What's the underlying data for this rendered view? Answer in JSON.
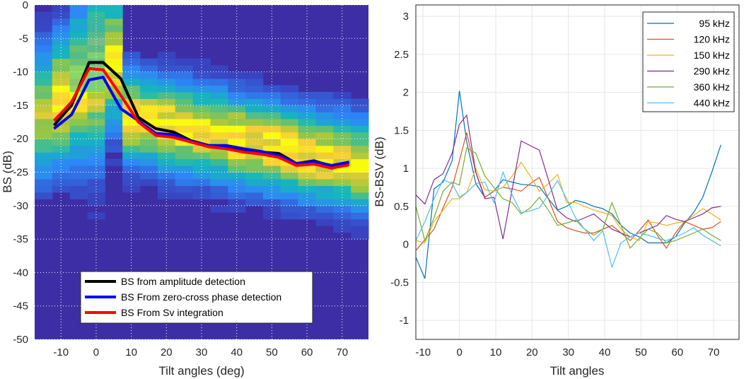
{
  "chart_data": [
    {
      "type": "heatmap",
      "title": "",
      "xlabel": "Tilt angles (deg)",
      "ylabel": "BS (dB)",
      "xlim": [
        -17.5,
        77.5
      ],
      "ylim": [
        -50,
        0
      ],
      "xticks": [
        "-10",
        "0",
        "10",
        "20",
        "30",
        "40",
        "50",
        "60",
        "70"
      ],
      "yticks": [
        "0",
        "-5",
        "-10",
        "-15",
        "-20",
        "-25",
        "-30",
        "-35",
        "-40",
        "-45",
        "-50"
      ],
      "grid": "dotted",
      "colors": {
        "low": "#3d2ea6",
        "high": "#f9fb0e"
      },
      "legend_position": "bottom-center",
      "legend": [
        "BS from amplitude detection",
        "BS From zero-cross phase detection",
        "BS From Sv integration"
      ],
      "series": [
        {
          "name": "BS from amplitude detection",
          "color": "#000000",
          "x": [
            -12,
            -7,
            -2,
            2,
            7,
            12,
            17,
            22,
            27,
            32,
            37,
            42,
            47,
            52,
            57,
            62,
            67,
            72
          ],
          "y": [
            -18,
            -15,
            -8.6,
            -8.6,
            -11,
            -16.8,
            -18.5,
            -19,
            -20.3,
            -21,
            -21.1,
            -21.6,
            -22,
            -22.2,
            -23.7,
            -23.3,
            -24.1,
            -23.5
          ]
        },
        {
          "name": "BS From zero-cross phase detection",
          "color": "#0000ff",
          "x": [
            -12,
            -7,
            -2,
            2,
            7,
            12,
            17,
            22,
            27,
            32,
            37,
            42,
            47,
            52,
            57,
            62,
            67,
            72
          ],
          "y": [
            -18.5,
            -16.4,
            -11.2,
            -10.8,
            -15.5,
            -17.3,
            -19.2,
            -19.4,
            -20.4,
            -21,
            -21,
            -21.5,
            -21.9,
            -22.5,
            -23.7,
            -23.4,
            -24,
            -23.5
          ]
        },
        {
          "name": "BS From Sv integration",
          "color": "#ff0000",
          "x": [
            -12,
            -7,
            -2,
            2,
            7,
            12,
            17,
            22,
            27,
            32,
            37,
            42,
            47,
            52,
            57,
            62,
            67,
            72
          ],
          "y": [
            -17.3,
            -14.5,
            -9.5,
            -9.7,
            -13.5,
            -17.5,
            -19.5,
            -19.8,
            -20.5,
            -21.2,
            -21.5,
            -22,
            -22.3,
            -22.8,
            -24,
            -23.8,
            -24.4,
            -23.9
          ]
        }
      ]
    },
    {
      "type": "line",
      "title": "",
      "xlabel": "Tilt angles",
      "ylabel": "BS-BSV (dB)",
      "xlim": [
        -12,
        77
      ],
      "ylim": [
        -1.25,
        3.15
      ],
      "xticks": [
        "-10",
        "0",
        "10",
        "20",
        "30",
        "40",
        "50",
        "60",
        "70"
      ],
      "yticks": [
        "3",
        "2.5",
        "2",
        "1.5",
        "1",
        "0.5",
        "0",
        "-0.5",
        "-1"
      ],
      "grid": "on",
      "legend_position": "top-right",
      "series": [
        {
          "name": "95 kHz",
          "color": "#0072bd",
          "x": [
            -12,
            -9.5,
            -7,
            -4.5,
            -2,
            0,
            2,
            4.5,
            7,
            9.5,
            12,
            14.5,
            17,
            19.5,
            22,
            24.5,
            27,
            29.5,
            32,
            34.5,
            37,
            39.5,
            42,
            44.5,
            47,
            49.5,
            52,
            54.5,
            57,
            59.5,
            62,
            64.5,
            67,
            69.5,
            72
          ],
          "y": [
            -0.17,
            -0.45,
            0.73,
            0.82,
            1.1,
            2.02,
            1.35,
            0.8,
            0.62,
            0.7,
            0.85,
            0.82,
            0.79,
            0.78,
            0.76,
            0.6,
            0.45,
            0.5,
            0.58,
            0.55,
            0.5,
            0.47,
            0.4,
            0.25,
            0.15,
            0.1,
            0.02,
            0.02,
            0.02,
            0.1,
            0.28,
            0.42,
            0.62,
            0.95,
            1.31
          ]
        },
        {
          "name": "120 kHz",
          "color": "#d95319",
          "x": [
            -12,
            -9.5,
            -7,
            -4.5,
            -2,
            0,
            2,
            4.5,
            7,
            9.5,
            12,
            14.5,
            17,
            19.5,
            22,
            24.5,
            27,
            29.5,
            32,
            34.5,
            37,
            39.5,
            42,
            44.5,
            47,
            49.5,
            52,
            54.5,
            57,
            59.5,
            62,
            64.5,
            67,
            69.5,
            72
          ],
          "y": [
            -0.08,
            0.06,
            0.2,
            0.48,
            0.75,
            1.1,
            1.47,
            0.95,
            0.62,
            0.7,
            0.75,
            0.73,
            0.7,
            0.8,
            0.88,
            0.6,
            0.3,
            0.22,
            0.18,
            0.15,
            0.15,
            0.2,
            0.25,
            0.15,
            0.05,
            0.18,
            0.32,
            0.12,
            -0.05,
            0.15,
            0.3,
            0.25,
            0.2,
            0.22,
            0.3
          ]
        },
        {
          "name": "150 kHz",
          "color": "#edb120",
          "x": [
            -12,
            -9.5,
            -7,
            -4.5,
            -2,
            0,
            2,
            4.5,
            7,
            9.5,
            12,
            14.5,
            17,
            19.5,
            22,
            24.5,
            27,
            29.5,
            32,
            34.5,
            37,
            39.5,
            42,
            44.5,
            47,
            49.5,
            52,
            54.5,
            57,
            59.5,
            62,
            64.5,
            67,
            69.5,
            72
          ],
          "y": [
            0.05,
            0.02,
            0.3,
            0.45,
            0.6,
            0.6,
            0.68,
            1.0,
            0.72,
            0.7,
            0.75,
            0.9,
            1.08,
            0.9,
            0.7,
            0.8,
            0.92,
            0.55,
            0.55,
            0.5,
            0.45,
            0.42,
            0.38,
            0.2,
            0.1,
            0.05,
            0.3,
            0.28,
            0.25,
            0.28,
            0.3,
            0.38,
            0.47,
            0.4,
            0.32
          ]
        },
        {
          "name": "290 kHz",
          "color": "#7e2f8e",
          "x": [
            -12,
            -9.5,
            -7,
            -4.5,
            -2,
            0,
            2,
            4.5,
            7,
            9.5,
            12,
            14.5,
            17,
            19.5,
            22,
            24.5,
            27,
            29.5,
            32,
            34.5,
            37,
            39.5,
            42,
            44.5,
            47,
            49.5,
            52,
            54.5,
            57,
            59.5,
            62,
            64.5,
            67,
            69.5,
            72
          ],
          "y": [
            0.65,
            0.53,
            0.85,
            0.93,
            1.2,
            1.58,
            1.7,
            0.95,
            0.6,
            0.62,
            0.07,
            0.72,
            1.36,
            1.3,
            1.24,
            0.85,
            0.45,
            0.35,
            0.3,
            0.35,
            0.4,
            0.3,
            0.2,
            0.15,
            0.1,
            0.15,
            0.2,
            0.25,
            0.38,
            0.33,
            0.3,
            0.35,
            0.4,
            0.48,
            0.5
          ]
        },
        {
          "name": "360 kHz",
          "color": "#77ac30",
          "x": [
            -12,
            -9.5,
            -7,
            -4.5,
            -2,
            0,
            2,
            4.5,
            7,
            9.5,
            12,
            14.5,
            17,
            19.5,
            22,
            24.5,
            27,
            29.5,
            32,
            34.5,
            37,
            39.5,
            42,
            44.5,
            47,
            49.5,
            52,
            54.5,
            57,
            59.5,
            62,
            64.5,
            67,
            69.5,
            72
          ],
          "y": [
            0.5,
            0.05,
            0.35,
            0.7,
            0.82,
            0.78,
            1.27,
            1.2,
            0.9,
            0.75,
            0.6,
            0.55,
            0.4,
            0.48,
            0.62,
            0.45,
            0.25,
            0.28,
            0.32,
            0.2,
            0.12,
            0.2,
            0.55,
            0.25,
            -0.05,
            0.08,
            0.2,
            0.15,
            0.02,
            0.05,
            0.1,
            0.15,
            0.2,
            0.12,
            0.05
          ]
        },
        {
          "name": "440 kHz",
          "color": "#4dbeee",
          "x": [
            -12,
            -9.5,
            -7,
            -4.5,
            -2,
            0,
            2,
            4.5,
            7,
            9.5,
            12,
            14.5,
            17,
            19.5,
            22,
            24.5,
            27,
            29.5,
            32,
            34.5,
            37,
            39.5,
            42,
            44.5,
            47,
            49.5,
            52,
            54.5,
            57,
            59.5,
            62,
            64.5,
            67,
            69.5,
            72
          ],
          "y": [
            0.05,
            0.3,
            0.6,
            0.85,
            0.8,
            0.62,
            0.68,
            0.8,
            0.82,
            0.55,
            0.95,
            0.65,
            0.42,
            0.44,
            0.48,
            0.65,
            0.84,
            0.6,
            0.35,
            0.2,
            0.05,
            0.18,
            -0.3,
            0.02,
            0.1,
            0.15,
            0.12,
            0.08,
            0.05,
            0.1,
            0.15,
            0.22,
            0.12,
            0.05,
            -0.02
          ]
        }
      ]
    }
  ]
}
